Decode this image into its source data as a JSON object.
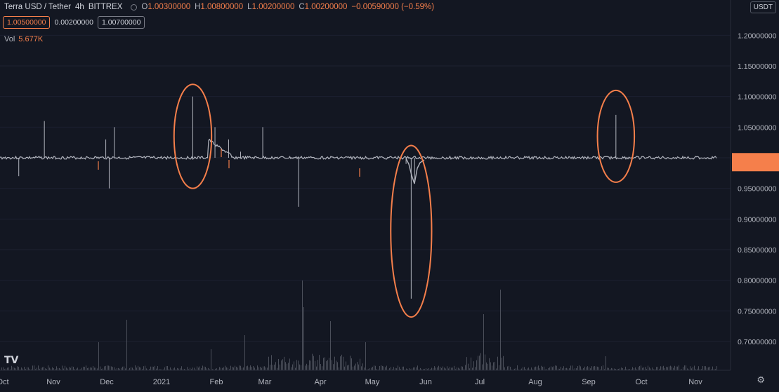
{
  "header": {
    "symbol": "Terra USD / Tether",
    "interval": "4h",
    "exchange": "BITTREX",
    "o_label": "O",
    "o_value": "1.00300000",
    "h_label": "H",
    "h_value": "1.00800000",
    "l_label": "L",
    "l_value": "1.00200000",
    "c_label": "C",
    "c_value": "1.00200000",
    "change": "−0.00590000 (−0.59%)"
  },
  "quote": {
    "sell": "1.00500000",
    "spread": "0.00200000",
    "buy": "1.00700000"
  },
  "volume": {
    "label": "Vol",
    "value": "5.677K"
  },
  "currency": "USDT",
  "colors": {
    "background": "#131722",
    "accent": "#f57f4b",
    "price_line": "#b2b5be",
    "annotation": "#f57f4b"
  },
  "chart_data": {
    "type": "line",
    "title": "",
    "xlabel": "",
    "ylabel": "",
    "x_ticks": [
      "Oct",
      "Nov",
      "Dec",
      "2021",
      "Feb",
      "Mar",
      "Apr",
      "May",
      "Jun",
      "Jul",
      "Aug",
      "Sep",
      "Oct",
      "Nov"
    ],
    "y_ticks": [
      "1.20000000",
      "1.15000000",
      "1.10000000",
      "1.05000000",
      "1.00000000",
      "0.95000000",
      "0.90000000",
      "0.85000000",
      "0.80000000",
      "0.75000000",
      "0.70000000"
    ],
    "ylim": [
      0.65,
      1.25
    ],
    "last_price": 1.002,
    "series": [
      {
        "values": [
          {
            "x": "2020-10-01",
            "y": 1.0
          },
          {
            "x": "2020-10-05",
            "y": 0.97
          },
          {
            "x": "2020-10-20",
            "y": 1.06
          },
          {
            "x": "2020-11-15",
            "y": 1.0
          },
          {
            "x": "2020-11-25",
            "y": 1.03
          },
          {
            "x": "2020-11-27",
            "y": 0.95
          },
          {
            "x": "2020-11-30",
            "y": 1.05
          },
          {
            "x": "2020-12-20",
            "y": 1.0
          },
          {
            "x": "2021-01-15",
            "y": 1.1
          },
          {
            "x": "2021-01-28",
            "y": 1.05
          },
          {
            "x": "2021-02-05",
            "y": 1.03
          },
          {
            "x": "2021-02-12",
            "y": 1.01
          },
          {
            "x": "2021-02-25",
            "y": 1.05
          },
          {
            "x": "2021-03-18",
            "y": 0.92
          },
          {
            "x": "2021-04-05",
            "y": 1.0
          },
          {
            "x": "2021-05-01",
            "y": 1.0
          },
          {
            "x": "2021-05-20",
            "y": 0.99
          },
          {
            "x": "2021-05-23",
            "y": 0.77
          },
          {
            "x": "2021-05-25",
            "y": 0.96
          },
          {
            "x": "2021-06-15",
            "y": 1.0
          },
          {
            "x": "2021-08-15",
            "y": 1.0
          },
          {
            "x": "2021-09-10",
            "y": 1.0
          },
          {
            "x": "2021-09-20",
            "y": 1.07
          },
          {
            "x": "2021-09-25",
            "y": 1.0
          },
          {
            "x": "2021-11-15",
            "y": 1.002
          }
        ]
      }
    ],
    "annotations": [
      {
        "type": "ellipse",
        "x": "2021-01-15",
        "y_range": [
          0.95,
          1.12
        ]
      },
      {
        "type": "ellipse",
        "x": "2021-05-23",
        "y_range": [
          0.74,
          1.02
        ]
      },
      {
        "type": "ellipse",
        "x": "2021-09-20",
        "y_range": [
          0.96,
          1.11
        ]
      }
    ]
  }
}
